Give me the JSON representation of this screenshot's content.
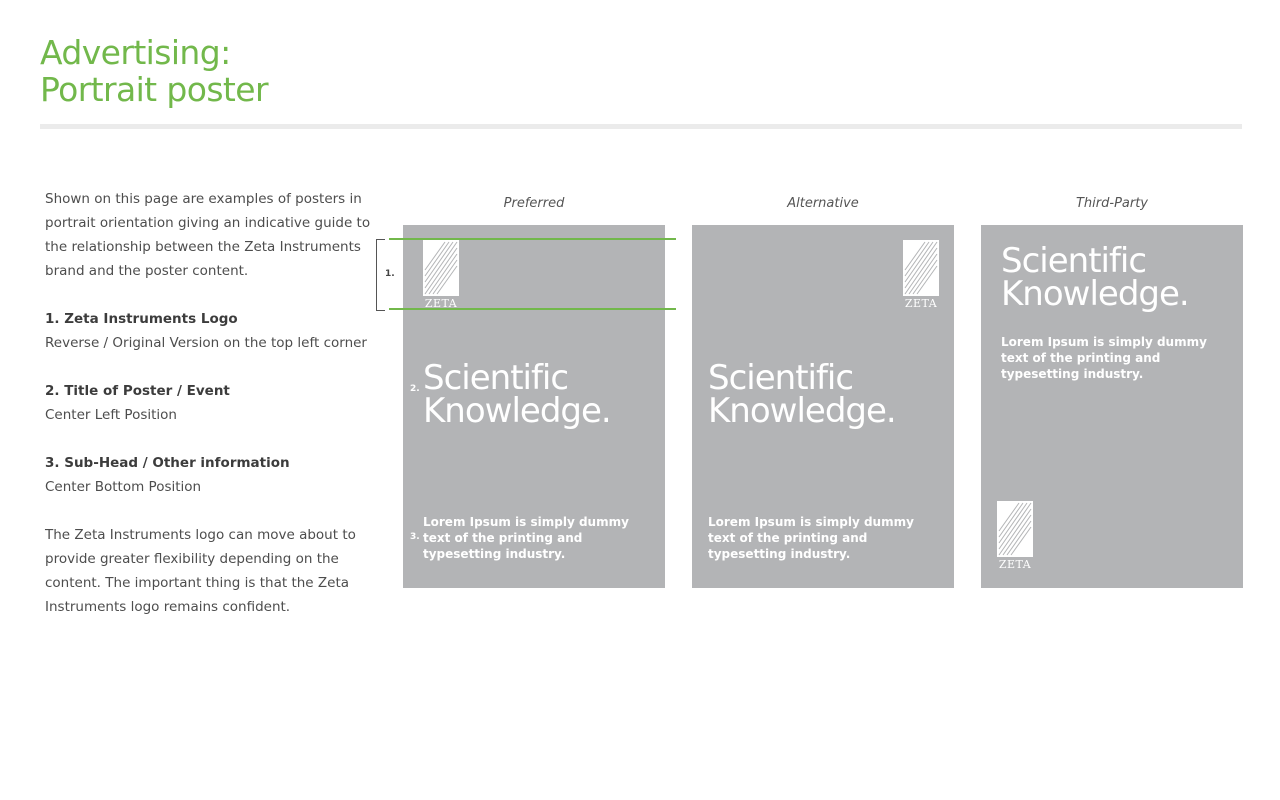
{
  "page": {
    "title_line1": "Advertising:",
    "title_line2": "Portrait poster"
  },
  "description": {
    "intro": "Shown on this page are examples of posters in portrait orientation giving an indicative guide to the relationship between the Zeta Instruments brand and the poster content.",
    "items": [
      {
        "heading": "1. Zeta Instruments Logo",
        "text": "Reverse / Original Version on the top left corner"
      },
      {
        "heading": "2. Title of Poster / Event",
        "text": "Center Left Position"
      },
      {
        "heading": "3. Sub-Head / Other information",
        "text": "Center Bottom Position"
      }
    ],
    "outro": "The Zeta Instruments logo can move about to provide greater flexibility depending on the content. The important thing is that the Zeta Instruments logo remains confident."
  },
  "posters": [
    {
      "label": "Preferred",
      "title_line1": "Scientific",
      "title_line2": "Knowledge.",
      "body": "Lorem Ipsum is simply dummy text of the printing and typesetting industry.",
      "logo_word": "ZETA"
    },
    {
      "label": "Alternative",
      "title_line1": "Scientific",
      "title_line2": "Knowledge.",
      "body": "Lorem Ipsum is simply dummy text of the printing and typesetting industry.",
      "logo_word": "ZETA"
    },
    {
      "label": "Third-Party",
      "title_line1": "Scientific",
      "title_line2": "Knowledge.",
      "body": "Lorem Ipsum is simply dummy text of the printing and typesetting industry.",
      "logo_word": "ZETA"
    }
  ],
  "markers": {
    "one": "1.",
    "two": "2.",
    "three": "3."
  },
  "colors": {
    "accent": "#72b84b",
    "poster_bg": "#b3b4b6",
    "rule": "#ebebeb"
  }
}
